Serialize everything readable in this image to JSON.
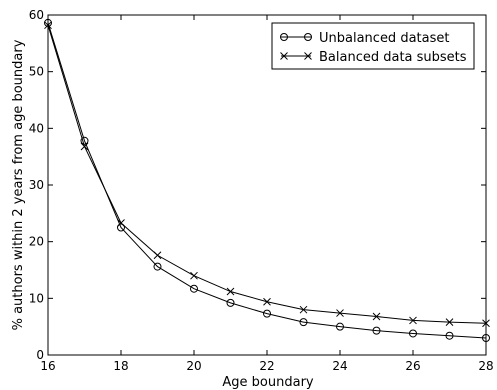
{
  "chart_data": {
    "type": "line",
    "title": "",
    "xlabel": "Age boundary",
    "ylabel": "% authors within 2 years from age boundary",
    "xlim": [
      16,
      28
    ],
    "ylim": [
      0,
      60
    ],
    "x_ticks": [
      16,
      18,
      20,
      22,
      24,
      26,
      28
    ],
    "y_ticks": [
      0,
      10,
      20,
      30,
      40,
      50,
      60
    ],
    "grid": false,
    "legend_position": "top-right",
    "x": [
      16,
      17,
      18,
      19,
      20,
      21,
      22,
      23,
      24,
      25,
      26,
      27,
      28
    ],
    "series": [
      {
        "name": "Unbalanced dataset",
        "marker": "circle",
        "values": [
          58.6,
          37.8,
          22.5,
          15.6,
          11.7,
          9.2,
          7.3,
          5.8,
          5.0,
          4.3,
          3.8,
          3.4,
          3.0
        ]
      },
      {
        "name": "Balanced data subsets",
        "marker": "x",
        "values": [
          58.2,
          36.8,
          23.3,
          17.6,
          14.0,
          11.2,
          9.4,
          8.0,
          7.4,
          6.8,
          6.1,
          5.8,
          5.6
        ]
      }
    ]
  }
}
